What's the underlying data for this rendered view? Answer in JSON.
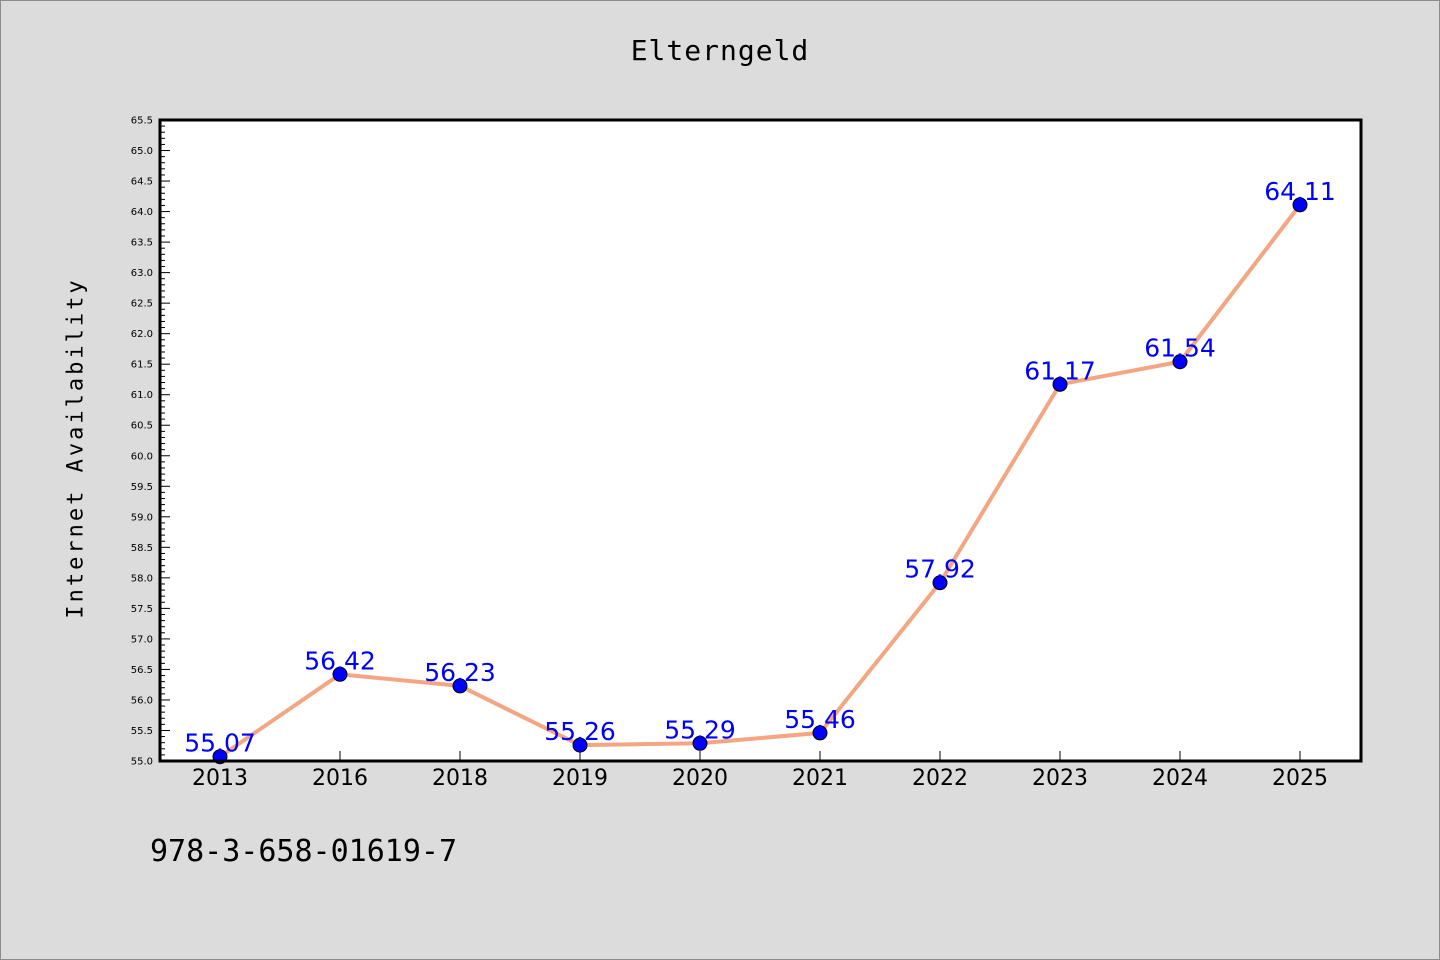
{
  "chart_data": {
    "type": "line",
    "title": "Elterngeld",
    "xlabel": "",
    "ylabel": "Internet Availability",
    "categories": [
      "2013",
      "2016",
      "2018",
      "2019",
      "2020",
      "2021",
      "2022",
      "2023",
      "2024",
      "2025"
    ],
    "series": [
      {
        "values": [
          55.07,
          56.42,
          56.23,
          55.26,
          55.29,
          55.46,
          57.92,
          61.17,
          61.54,
          64.11
        ],
        "labels": [
          "55.07",
          "56.42",
          "56.23",
          "55.26",
          "55.29",
          "55.46",
          "57.92",
          "61.17",
          "61.54",
          "64.11"
        ],
        "line_color": "#f4a582",
        "marker_color": "#0000ff",
        "label_color": "#0000ff"
      }
    ],
    "ylim": [
      55.0,
      65.5
    ],
    "y_ticks": [
      "55.0",
      "55.5",
      "56.0",
      "56.5",
      "57.0",
      "57.5",
      "58.0",
      "58.5",
      "59.0",
      "59.5",
      "60.0",
      "60.5",
      "61.0",
      "61.5",
      "62.0",
      "62.5",
      "63.0",
      "63.5",
      "64.0",
      "64.5",
      "65.0",
      "65.5"
    ],
    "grid": false,
    "legend": "none"
  },
  "footer": {
    "text": "978-3-658-01619-7"
  },
  "colors": {
    "background": "#dcdcdc",
    "plot_background": "#ffffff"
  }
}
